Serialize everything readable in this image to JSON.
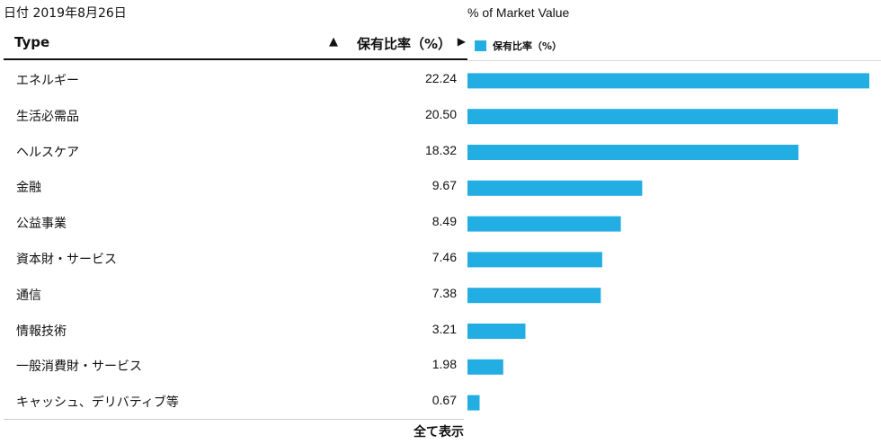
{
  "date_label": "日付 2019年8月26日",
  "table": {
    "col_type": "Type",
    "col_ratio": "保有比率（%）",
    "sort_asc_icon": "▲",
    "sort_next_icon": "▶",
    "rows": [
      {
        "label": "エネルギー",
        "value": "22.24"
      },
      {
        "label": "生活必需品",
        "value": "20.50"
      },
      {
        "label": "ヘルスケア",
        "value": "18.32"
      },
      {
        "label": "金融",
        "value": "9.67"
      },
      {
        "label": "公益事業",
        "value": "8.49"
      },
      {
        "label": "資本財・サービス",
        "value": "7.46"
      },
      {
        "label": "通信",
        "value": "7.38"
      },
      {
        "label": "情報技術",
        "value": "3.21"
      },
      {
        "label": "一般消費財・サービス",
        "value": "1.98"
      },
      {
        "label": "キャッシュ、デリバティブ等",
        "value": "0.67"
      }
    ],
    "show_all": "全て表示"
  },
  "chart_data": {
    "type": "bar",
    "orientation": "horizontal",
    "title": "% of Market Value",
    "legend": "top-left",
    "grid": false,
    "color": "#22ade3",
    "categories": [
      "エネルギー",
      "生活必需品",
      "ヘルスケア",
      "金融",
      "公益事業",
      "資本財・サービス",
      "通信",
      "情報技術",
      "一般消費財・サービス",
      "キャッシュ、デリバティブ等"
    ],
    "series": [
      {
        "name": "保有比率（%）",
        "values": [
          22.24,
          20.5,
          18.32,
          9.67,
          8.49,
          7.46,
          7.38,
          3.21,
          1.98,
          0.67
        ]
      }
    ],
    "xlim": [
      0,
      22.24
    ]
  }
}
